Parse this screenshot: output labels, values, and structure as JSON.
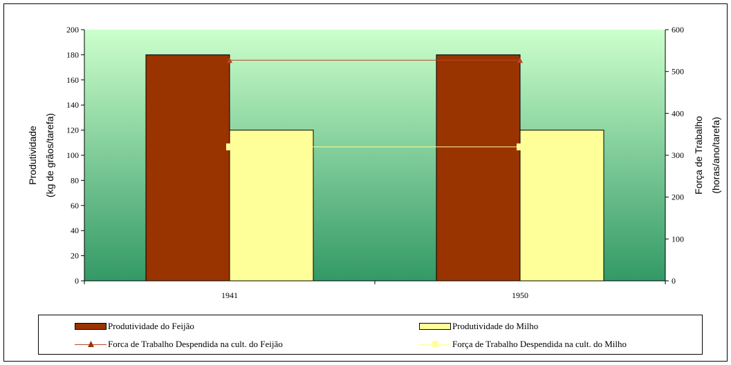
{
  "chart_data": {
    "type": "bar",
    "categories": [
      "1941",
      "1950"
    ],
    "series": [
      {
        "name": "Produtividade do Feijão",
        "kind": "bar",
        "axis": "left",
        "color": "#993300",
        "values": [
          180,
          180
        ]
      },
      {
        "name": "Produtividade do Milho",
        "kind": "bar",
        "axis": "left",
        "color": "#ffff99",
        "values": [
          120,
          120
        ]
      },
      {
        "name": "Forca de Trabalho Despendida na cult. do Feijão",
        "kind": "line",
        "axis": "right",
        "color": "#b5482a",
        "marker": "triangle",
        "values": [
          527,
          527
        ]
      },
      {
        "name": "Força de Trabalho Despendida na cult. do Milho",
        "kind": "line",
        "axis": "right",
        "color": "#ffff99",
        "marker": "square",
        "values": [
          320,
          320
        ]
      }
    ],
    "ylabel": [
      "Produtividade",
      "(kg de grãos/tarefa)"
    ],
    "y2label": [
      "Força de Trabalho",
      "(horas/ano/tarefa)"
    ],
    "ylim": [
      0,
      200
    ],
    "y2lim": [
      0,
      600
    ],
    "yticks": [
      "0",
      "20",
      "40",
      "60",
      "80",
      "100",
      "120",
      "140",
      "160",
      "180",
      "200"
    ],
    "y2ticks": [
      "0",
      "100",
      "200",
      "300",
      "400",
      "500",
      "600"
    ],
    "legend": "bottom",
    "grid": false,
    "background_gradient": [
      "#ccffcc",
      "#339966"
    ]
  }
}
